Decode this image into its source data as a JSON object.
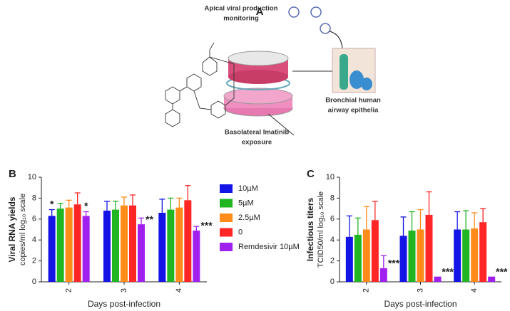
{
  "panel_labels": [
    "A",
    "B",
    "C"
  ],
  "diagram": {
    "apical_label": [
      "Apical viral production",
      "monitoring"
    ],
    "epithelia_label": [
      "Bronchial human",
      "airway epithelia"
    ],
    "basolateral_label": [
      "Basolateral Imatinib",
      "exposure"
    ]
  },
  "chart_data": [
    {
      "type": "bar",
      "ylabel": "Viral RNA yields",
      "ylabel_sub": "copies/ml log₁₀ scale",
      "xlabel": "Days post-infection",
      "categories": [
        "2",
        "3",
        "4"
      ],
      "ylim": [
        0,
        10
      ],
      "yticks": [
        0,
        2,
        4,
        6,
        8,
        10
      ],
      "series": [
        {
          "name": "10µM",
          "color": "#1414e6",
          "values": [
            6.3,
            6.8,
            6.6
          ],
          "errors": [
            0.6,
            0.9,
            1.3
          ],
          "annotations": [
            "*",
            null,
            null
          ]
        },
        {
          "name": "5µM",
          "color": "#22b522",
          "values": [
            7.0,
            6.9,
            6.9
          ],
          "errors": [
            0.5,
            0.8,
            1.1
          ]
        },
        {
          "name": "2.5µM",
          "color": "#ff8c1a",
          "values": [
            7.1,
            7.3,
            7.1
          ],
          "errors": [
            0.7,
            0.8,
            0.9
          ]
        },
        {
          "name": "0",
          "color": "#ff2626",
          "values": [
            7.4,
            7.3,
            7.8
          ],
          "errors": [
            1.1,
            1.0,
            1.4
          ]
        },
        {
          "name": "Remdesivir 10µM",
          "color": "#a020f0",
          "values": [
            6.3,
            5.5,
            4.9
          ],
          "errors": [
            0.4,
            0.6,
            0.4
          ],
          "annotations": [
            "*",
            "**",
            "***"
          ]
        }
      ]
    },
    {
      "type": "bar",
      "ylabel": "Infectious titers",
      "ylabel_sub": "TCID50/ml log₁₀ scale",
      "xlabel": "Days post-infection",
      "categories": [
        "2",
        "3",
        "4"
      ],
      "ylim": [
        0,
        10
      ],
      "yticks": [
        0,
        2,
        4,
        6,
        8,
        10
      ],
      "series": [
        {
          "color": "#1414e6",
          "values": [
            4.3,
            4.4,
            5.0
          ],
          "errors": [
            2.0,
            1.8,
            1.7
          ]
        },
        {
          "color": "#22b522",
          "values": [
            4.5,
            4.9,
            5.0
          ],
          "errors": [
            1.6,
            1.8,
            1.8
          ]
        },
        {
          "color": "#ff8c1a",
          "values": [
            5.0,
            5.0,
            5.1
          ],
          "errors": [
            2.2,
            1.9,
            1.5
          ]
        },
        {
          "color": "#ff2626",
          "values": [
            5.9,
            6.4,
            5.7
          ],
          "errors": [
            1.8,
            2.2,
            1.3
          ]
        },
        {
          "color": "#a020f0",
          "values": [
            1.3,
            0.5,
            0.5
          ],
          "errors": [
            1.2,
            null,
            null
          ],
          "annotations": [
            "***",
            "***",
            "***"
          ]
        }
      ]
    }
  ]
}
